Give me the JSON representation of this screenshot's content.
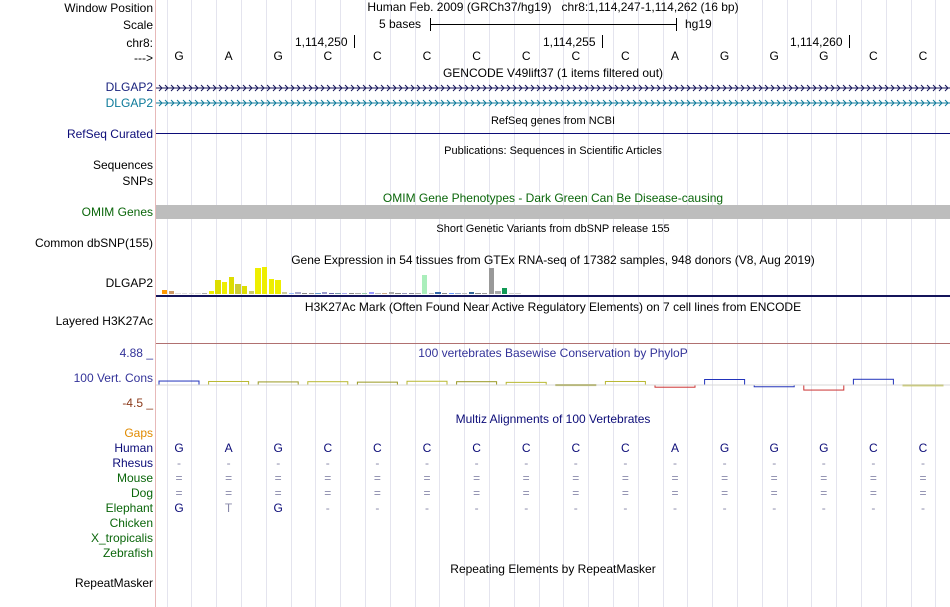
{
  "labels": {
    "window_position": "Window Position",
    "scale": "Scale",
    "chrom": "chr8:",
    "arrow": "--->",
    "dlgap2_a": "DLGAP2",
    "dlgap2_b": "DLGAP2",
    "refseq": "RefSeq Curated",
    "sequences": "Sequences",
    "snps": "SNPs",
    "omim": "OMIM Genes",
    "common_dbsnp": "Common dbSNP(155)",
    "gtex_gene": "DLGAP2",
    "h3k27ac": "Layered H3K27Ac",
    "cons_max": "4.88 _",
    "cons_label": "100 Vert. Cons",
    "cons_min": "-4.5 _",
    "gaps": "Gaps",
    "human": "Human",
    "rhesus": "Rhesus",
    "mouse": "Mouse",
    "dog": "Dog",
    "elephant": "Elephant",
    "chicken": "Chicken",
    "x_tropicalis": "X_tropicalis",
    "zebrafish": "Zebrafish",
    "repeatmasker": "RepeatMasker"
  },
  "header": {
    "assembly": "Human Feb. 2009 (GRCh37/hg19)",
    "position": "chr8:1,114,247-1,114,262 (16 bp)",
    "scale_text": "5 bases",
    "scale_db": "hg19",
    "coord_1": "1,114,250",
    "coord_2": "1,114,255",
    "coord_3": "1,114,260"
  },
  "sequence": [
    "G",
    "A",
    "G",
    "C",
    "C",
    "C",
    "C",
    "C",
    "C",
    "C",
    "A",
    "G",
    "G",
    "G",
    "C",
    "C"
  ],
  "tracks": {
    "gencode_title": "GENCODE V49lift37 (1 items filtered out)",
    "refseq_title": "RefSeq genes from NCBI",
    "publications_title": "Publications: Sequences in Scientific Articles",
    "omim_title": "OMIM Gene Phenotypes - Dark Green Can Be Disease-causing",
    "dbsnp_title": "Short Genetic Variants from dbSNP release 155",
    "gtex_title": "Gene Expression in 54 tissues from GTEx RNA-seq of 17382 samples, 948 donors (V8, Aug 2019)",
    "h3k27ac_title": "H3K27Ac Mark (Often Found Near Active Regulatory Elements) on 7 cell lines from ENCODE",
    "phylop_title": "100 vertebrates Basewise Conservation by PhyloP",
    "multiz_title": "Multiz Alignments of 100 Vertebrates",
    "repeat_title": "Repeating Elements by RepeatMasker"
  },
  "alignment": {
    "rhesus": [
      "-",
      "-",
      "-",
      "-",
      "-",
      "-",
      "-",
      "-",
      "-",
      "-",
      "-",
      "-",
      "-",
      "-",
      "-",
      "-"
    ],
    "mouse": [
      "=",
      "=",
      "=",
      "=",
      "=",
      "=",
      "=",
      "=",
      "=",
      "=",
      "=",
      "=",
      "=",
      "=",
      "=",
      "="
    ],
    "dog": [
      "=",
      "=",
      "=",
      "=",
      "=",
      "=",
      "=",
      "=",
      "=",
      "=",
      "=",
      "=",
      "=",
      "=",
      "=",
      "="
    ],
    "elephant": [
      "G",
      "T",
      "G",
      "-",
      "-",
      "-",
      "-",
      "-",
      "-",
      "-",
      "-",
      "-",
      "-",
      "-",
      "-",
      "-"
    ]
  },
  "gtex_values": [
    4,
    3,
    1,
    1,
    1,
    0,
    1,
    3,
    14,
    12,
    17,
    10,
    8,
    3,
    26,
    27,
    15,
    14,
    2,
    1,
    2,
    1,
    1,
    1,
    2,
    1,
    1,
    1,
    1,
    1,
    1,
    2,
    1,
    1,
    2,
    1,
    1,
    1,
    1,
    19,
    1,
    2,
    1,
    1,
    1,
    1,
    2,
    1,
    1,
    26,
    3,
    6,
    1,
    1
  ],
  "gtex_colors": [
    "#ff9900",
    "#cc9966",
    "#dddddd",
    "#dddddd",
    "#dddddd",
    "#dddddd",
    "#aaaaaa",
    "#eeee00",
    "#dddd00",
    "#eeee00",
    "#dddd00",
    "#cccc33",
    "#dddd00",
    "#cccc66",
    "#eeee00",
    "#eeee00",
    "#eeee00",
    "#eeee00",
    "#cccc99",
    "#99bbff",
    "#aaaacc",
    "#888888",
    "#999999",
    "#6699cc",
    "#9999cc",
    "#6666aa",
    "#7799aa",
    "#aaaaee",
    "#888888",
    "#aaaaaa",
    "#99ccaa",
    "#9999ff",
    "#bbbbbb",
    "#ccaa88",
    "#aaaaaa",
    "#888888",
    "#9999bb",
    "#888899",
    "#aaaaaa",
    "#aaeebb",
    "#bbbbbb",
    "#3366aa",
    "#888888",
    "#6699ff",
    "#99aacc",
    "#bbbbbb",
    "#336699",
    "#888888",
    "#999999",
    "#999999",
    "#aaaaaa",
    "#119955",
    "#cccccc",
    "#cccccc"
  ],
  "phylop_values": [
    1.8,
    1.6,
    1.4,
    1.5,
    1.3,
    1.7,
    1.5,
    1.2,
    0.2,
    1.6,
    -1.0,
    2.5,
    -0.8,
    -2.3,
    2.6,
    0.1
  ]
}
